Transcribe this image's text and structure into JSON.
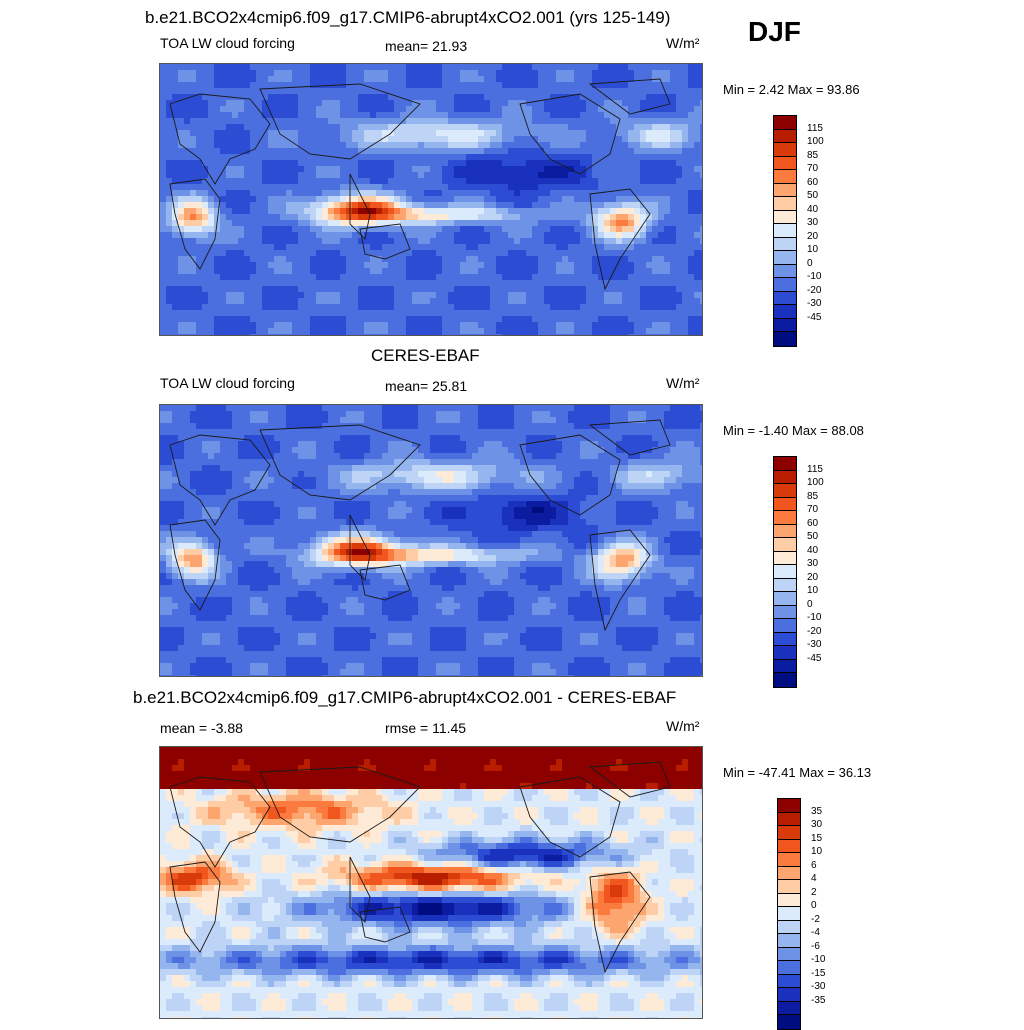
{
  "season": "DJF",
  "palettes": {
    "full": [
      "#8c0000",
      "#b81d00",
      "#d93a0a",
      "#f0561e",
      "#fb7a3e",
      "#fca56e",
      "#fecda6",
      "#fdebd8",
      "#dcebfb",
      "#bdd4f6",
      "#94b5ee",
      "#6e93e6",
      "#4b6fdf",
      "#2d4cd4",
      "#1931bd",
      "#0b1ca0",
      "#000d80"
    ],
    "diff": [
      "#8c0000",
      "#b81d00",
      "#d93a0a",
      "#f0561e",
      "#fb7a3e",
      "#fca56e",
      "#fecda6",
      "#fdebd8",
      "#dcebfb",
      "#bdd4f6",
      "#94b5ee",
      "#6e93e6",
      "#4b6fdf",
      "#2d4cd4",
      "#1931bd",
      "#0b1ca0",
      "#000d80"
    ]
  },
  "panels": [
    {
      "title": "b.e21.BCO2x4cmip6.f09_g17.CMIP6-abrupt4xCO2.001 (yrs 125-149)",
      "left_label": "TOA LW cloud forcing",
      "center_label": "mean=  21.93",
      "units": "W/m²",
      "minmax": "Min =   2.42 Max =  93.86",
      "levels": [
        "115",
        "100",
        "85",
        "70",
        "60",
        "50",
        "40",
        "30",
        "20",
        "10",
        "0",
        "-10",
        "-20",
        "-30",
        "-45"
      ],
      "palette": "full",
      "bias": 0
    },
    {
      "title": "CERES-EBAF",
      "left_label": "TOA LW cloud forcing",
      "center_label": "mean=  25.81",
      "units": "W/m²",
      "minmax": "Min =  -1.40 Max =  88.08",
      "levels": [
        "115",
        "100",
        "85",
        "70",
        "60",
        "50",
        "40",
        "30",
        "20",
        "10",
        "0",
        "-10",
        "-20",
        "-30",
        "-45"
      ],
      "palette": "full",
      "bias": 0.3
    },
    {
      "title": "b.e21.BCO2x4cmip6.f09_g17.CMIP6-abrupt4xCO2.001 - CERES-EBAF",
      "left_label": "mean =  -3.88",
      "center_label": "rmse =  11.45",
      "units": "W/m²",
      "minmax": "Min = -47.41 Max =  36.13",
      "levels": [
        "35",
        "30",
        "15",
        "10",
        "6",
        "4",
        "2",
        "0",
        "-2",
        "-4",
        "-6",
        "-10",
        "-15",
        "-30",
        "-35"
      ],
      "palette": "diff",
      "bias": 0
    }
  ]
}
